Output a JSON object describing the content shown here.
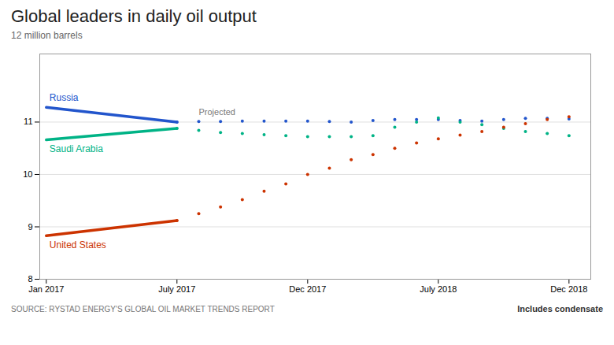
{
  "chart_data": {
    "type": "line",
    "title": "Global leaders in daily oil output",
    "subtitle": "12 million barrels",
    "source": "SOURCE: RYSTAD ENERGY'S GLOBAL OIL MARKET TRENDS REPORT",
    "note": "Includes condensate",
    "annotations": [
      "Projected"
    ],
    "xlim": [
      -0.3,
      25
    ],
    "xticks": [
      {
        "value": 0,
        "label": "Jan 2017"
      },
      {
        "value": 6,
        "label": "July 2017"
      },
      {
        "value": 12,
        "label": "Dec 2017"
      },
      {
        "value": 18,
        "label": "July 2018"
      },
      {
        "value": 24,
        "label": "Dec 2018"
      }
    ],
    "ylim": [
      8,
      12.3
    ],
    "yticks": [
      8,
      9,
      10,
      11
    ],
    "grid": true,
    "series": [
      {
        "name": "Russia",
        "color": "#2255cc",
        "type": "line",
        "line_style": "solid",
        "x": [
          0,
          6
        ],
        "values": [
          11.28,
          11.0
        ]
      },
      {
        "name": "Saudi Arabia",
        "color": "#00b386",
        "type": "line",
        "line_style": "solid",
        "x": [
          0,
          6
        ],
        "values": [
          10.66,
          10.88
        ]
      },
      {
        "name": "United States",
        "color": "#cc3300",
        "type": "line",
        "line_style": "solid",
        "x": [
          0,
          6
        ],
        "values": [
          8.83,
          9.12
        ]
      },
      {
        "name": "Russia",
        "color": "#2255cc",
        "type": "scatter",
        "marker": "o",
        "x": [
          6,
          7,
          8,
          9,
          10,
          11,
          12,
          13,
          14,
          15,
          16,
          17,
          18,
          19,
          20,
          21,
          22,
          23,
          24
        ],
        "values": [
          11.0,
          11.01,
          11.01,
          11.02,
          11.02,
          11.02,
          11.02,
          11.01,
          11.0,
          11.03,
          11.05,
          11.05,
          11.05,
          11.03,
          11.02,
          11.05,
          11.07,
          11.07,
          11.06
        ]
      },
      {
        "name": "Saudi Arabia",
        "color": "#00b386",
        "type": "scatter",
        "marker": "o",
        "x": [
          6,
          7,
          8,
          9,
          10,
          11,
          12,
          13,
          14,
          15,
          16,
          17,
          18,
          19,
          20,
          21,
          22,
          23,
          24
        ],
        "values": [
          10.88,
          10.84,
          10.8,
          10.78,
          10.76,
          10.74,
          10.72,
          10.72,
          10.72,
          10.74,
          10.9,
          11.0,
          11.08,
          11.0,
          10.95,
          10.88,
          10.82,
          10.78,
          10.74
        ]
      },
      {
        "name": "United States",
        "color": "#cc3300",
        "type": "scatter",
        "marker": "o",
        "x": [
          6,
          7,
          8,
          9,
          10,
          11,
          12,
          13,
          14,
          15,
          16,
          17,
          18,
          19,
          20,
          21,
          22,
          23,
          24
        ],
        "values": [
          9.12,
          9.25,
          9.38,
          9.52,
          9.68,
          9.82,
          10.0,
          10.12,
          10.28,
          10.38,
          10.5,
          10.6,
          10.68,
          10.75,
          10.82,
          10.9,
          10.97,
          11.05,
          11.1
        ]
      }
    ]
  }
}
